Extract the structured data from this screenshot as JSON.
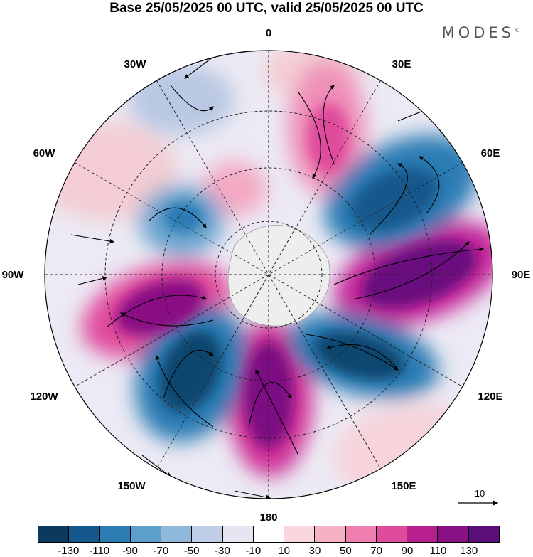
{
  "title": "Base 25/05/2025 00 UTC, valid 25/05/2025 00 UTC",
  "brand": "MODES",
  "brand_mark": "©",
  "map": {
    "projection": "south-polar-stereographic",
    "longitude_labels": [
      "0",
      "30E",
      "60E",
      "90E",
      "120E",
      "150E",
      "180",
      "150W",
      "120W",
      "90W",
      "60W",
      "30W"
    ],
    "reference_vector_label": "10"
  },
  "colorbar": {
    "colors": [
      "#0b3a5e",
      "#15588c",
      "#2c7cb4",
      "#5c9fcb",
      "#8fb8da",
      "#bfcde6",
      "#e6e6f2",
      "#ffffff",
      "#fad7dc",
      "#f6b2c4",
      "#ef7fae",
      "#e04b9c",
      "#b81f8c",
      "#8a1184",
      "#5c0e7a"
    ],
    "tick_labels": [
      "-130",
      "-110",
      "-90",
      "-70",
      "-50",
      "-30",
      "-10",
      "10",
      "30",
      "50",
      "70",
      "90",
      "110",
      "130"
    ]
  }
}
